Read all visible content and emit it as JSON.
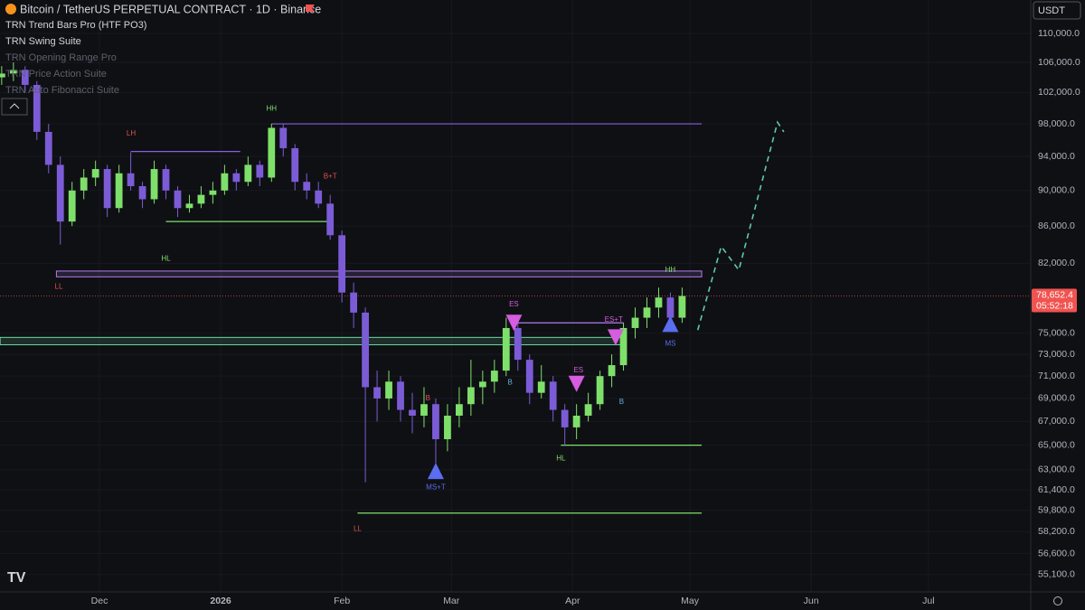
{
  "header": {
    "symbol": "Bitcoin / TetherUS PERPETUAL CONTRACT · 1D · Binance",
    "currency": "USDT"
  },
  "indicators": [
    "TRN Trend Bars Pro (HTF PO3)",
    "TRN Swing Suite",
    "TRN Opening Range Pro",
    "TRN Price Action Suite",
    "TRN Auto Fibonacci Suite"
  ],
  "chart_data": {
    "type": "candlestick",
    "x": [
      -25,
      -22,
      -19,
      -16,
      -13,
      -10,
      -7,
      -4,
      -1,
      2,
      5,
      8,
      11,
      14,
      17,
      20,
      23,
      26,
      29,
      32,
      35,
      38,
      41,
      44,
      47,
      50,
      53,
      56,
      59,
      62,
      65,
      68,
      71,
      74,
      77,
      80,
      83,
      86,
      89,
      92,
      95,
      98,
      101,
      104,
      107,
      110,
      113,
      116,
      119,
      122,
      125,
      128,
      131,
      134,
      137,
      140,
      143,
      146,
      149
    ],
    "open": [
      104000,
      104500,
      105000,
      103000,
      97000,
      93000,
      86500,
      90000,
      91500,
      92500,
      88000,
      92000,
      90500,
      89000,
      92500,
      90000,
      88000,
      88500,
      89500,
      90000,
      92000,
      91000,
      93000,
      91500,
      97500,
      95000,
      91000,
      90000,
      88500,
      85000,
      79000,
      77000,
      70000,
      69000,
      70500,
      68000,
      67500,
      68500,
      65500,
      67500,
      68500,
      70000,
      70500,
      71500,
      75500,
      72500,
      69500,
      70500,
      68000,
      66500,
      67500,
      68500,
      71000,
      72000,
      75500,
      76500,
      77500,
      78500,
      76500
    ],
    "high": [
      105500,
      106000,
      105500,
      103500,
      98000,
      94000,
      91000,
      92500,
      93500,
      93000,
      93000,
      94500,
      91000,
      93500,
      93000,
      90500,
      89500,
      90500,
      91000,
      93000,
      92500,
      94000,
      93500,
      98000,
      98000,
      95500,
      92000,
      91000,
      89500,
      85500,
      80000,
      77500,
      71500,
      71500,
      71000,
      69500,
      70000,
      69000,
      68500,
      70000,
      72500,
      71500,
      72500,
      76500,
      76000,
      73000,
      72000,
      71000,
      68500,
      68500,
      69500,
      71500,
      73000,
      76000,
      77500,
      78500,
      79500,
      79000,
      79500
    ],
    "low": [
      103000,
      103500,
      102000,
      96000,
      92000,
      84000,
      86000,
      89000,
      90500,
      87000,
      87500,
      90000,
      88000,
      88500,
      89000,
      87000,
      87500,
      88000,
      88500,
      89500,
      90000,
      90500,
      90500,
      91000,
      94000,
      90000,
      89000,
      88000,
      84500,
      78000,
      75500,
      62000,
      67000,
      68000,
      67000,
      66000,
      66500,
      63500,
      64500,
      66500,
      67500,
      68500,
      69500,
      71000,
      71500,
      68500,
      69000,
      67000,
      65000,
      65500,
      67000,
      68000,
      70000,
      71500,
      74500,
      75500,
      76500,
      75500,
      76000
    ],
    "close": [
      104500,
      105000,
      103000,
      97000,
      93000,
      86500,
      90000,
      91500,
      92500,
      88000,
      92000,
      90500,
      89000,
      92500,
      90000,
      88000,
      88500,
      89500,
      90000,
      92000,
      91000,
      93000,
      91500,
      97500,
      95000,
      91000,
      90000,
      88500,
      85000,
      79000,
      77000,
      70000,
      69000,
      70500,
      68000,
      67500,
      68500,
      65500,
      67500,
      68500,
      70000,
      70500,
      71500,
      75500,
      72500,
      69500,
      70500,
      68000,
      66500,
      67500,
      68500,
      71000,
      72000,
      75500,
      76500,
      77500,
      78500,
      76500,
      78652.4
    ],
    "up_color": "#7ee06a",
    "down_color": "#7b5cd6",
    "xlim": [
      -25.43,
      238.15
    ],
    "xticks": [
      {
        "value": 0,
        "label": "Dec"
      },
      {
        "value": 31,
        "label": "2026"
      },
      {
        "value": 62,
        "label": "Feb"
      },
      {
        "value": 90,
        "label": "Mar"
      },
      {
        "value": 121,
        "label": "Apr"
      },
      {
        "value": 151,
        "label": "May"
      },
      {
        "value": 182,
        "label": "Jun"
      },
      {
        "value": 212,
        "label": "Jul"
      }
    ],
    "ylim": [
      53890,
      114800
    ],
    "log_scale": true,
    "yticks": [
      {
        "value": 110000,
        "label": "110,000.0"
      },
      {
        "value": 106000,
        "label": "106,000.0"
      },
      {
        "value": 102000,
        "label": "102,000.0"
      },
      {
        "value": 98000,
        "label": "98,000.0"
      },
      {
        "value": 94000,
        "label": "94,000.0"
      },
      {
        "value": 90000,
        "label": "90,000.0"
      },
      {
        "value": 86000,
        "label": "86,000.0"
      },
      {
        "value": 82000,
        "label": "82,000.0"
      },
      {
        "value": 75000,
        "label": "75,000.0"
      },
      {
        "value": 73000,
        "label": "73,000.0"
      },
      {
        "value": 71000,
        "label": "71,000.0"
      },
      {
        "value": 69000,
        "label": "69,000.0"
      },
      {
        "value": 67000,
        "label": "67,000.0"
      },
      {
        "value": 65000,
        "label": "65,000.0"
      },
      {
        "value": 63000,
        "label": "63,000.0"
      },
      {
        "value": 61400,
        "label": "61,400.0"
      },
      {
        "value": 59800,
        "label": "59,800.0"
      },
      {
        "value": 58200,
        "label": "58,200.0"
      },
      {
        "value": 56600,
        "label": "56,600.0"
      },
      {
        "value": 55100,
        "label": "55,100.0"
      }
    ],
    "last_price": {
      "value": 78652.4,
      "label": "78,652.4"
    },
    "countdown": "05:52:18",
    "levels": [
      {
        "price": [
          98000
        ],
        "x": [
          44,
          154
        ],
        "color": "#8e5ee0"
      },
      {
        "price": [
          94600
        ],
        "x": [
          8,
          36
        ],
        "color": "#8e5ee0"
      },
      {
        "price": [
          86500
        ],
        "x": [
          17,
          59
        ],
        "color": "#7ee06a"
      },
      {
        "price": [
          80600,
          81200
        ],
        "x": [
          -11,
          154
        ],
        "color": "#b07de8"
      },
      {
        "price": [
          73900,
          74600
        ],
        "x": [
          -25.4,
          134
        ],
        "color": "#6fd6a0"
      },
      {
        "price": [
          76000
        ],
        "x": [
          106,
          134
        ],
        "color": "#b07de8"
      },
      {
        "price": [
          65000
        ],
        "x": [
          118,
          154
        ],
        "color": "#7ee06a"
      },
      {
        "price": [
          59600
        ],
        "x": [
          66,
          154
        ],
        "color": "#7ee06a"
      }
    ],
    "markers": [
      {
        "direction": "down",
        "x": 106,
        "price": 76000,
        "color": "#d65ce0"
      },
      {
        "direction": "down",
        "x": 122,
        "price": 70300,
        "color": "#d65ce0"
      },
      {
        "direction": "down",
        "x": 132,
        "price": 74600,
        "color": "#d65ce0"
      },
      {
        "direction": "up",
        "x": 86,
        "price": 62900,
        "color": "#5b6df0"
      },
      {
        "direction": "up",
        "x": 146,
        "price": 75900,
        "color": "#5b6df0"
      }
    ],
    "tags": [
      {
        "text": "HH",
        "x": 44,
        "price": 99900,
        "color": "#7ee06a"
      },
      {
        "text": "LH",
        "x": 8.1,
        "price": 96800,
        "color": "#e0524f"
      },
      {
        "text": "HL",
        "x": 17,
        "price": 82500,
        "color": "#7ee06a"
      },
      {
        "text": "B+T",
        "x": 59,
        "price": 91600,
        "color": "#e0524f"
      },
      {
        "text": "LL",
        "x": -10.4,
        "price": 79600,
        "color": "#e0524f"
      },
      {
        "text": "HH",
        "x": 146,
        "price": 81300,
        "color": "#7ee06a"
      },
      {
        "text": "ES",
        "x": 106,
        "price": 77800,
        "color": "#d65ce0"
      },
      {
        "text": "ES+T",
        "x": 131.5,
        "price": 76300,
        "color": "#d65ce0"
      },
      {
        "text": "ES",
        "x": 122.5,
        "price": 71500,
        "color": "#d65ce0"
      },
      {
        "text": "B",
        "x": 84,
        "price": 69000,
        "color": "#e0524f"
      },
      {
        "text": "B",
        "x": 105,
        "price": 70400,
        "color": "#5fb3d9"
      },
      {
        "text": "B",
        "x": 133.5,
        "price": 68700,
        "color": "#5fb3d9"
      },
      {
        "text": "MS+T",
        "x": 86,
        "price": 61600,
        "color": "#5b6df0"
      },
      {
        "text": "MS",
        "x": 146,
        "price": 74000,
        "color": "#5b6df0"
      },
      {
        "text": "HL",
        "x": 118,
        "price": 63900,
        "color": "#7ee06a"
      },
      {
        "text": "LL",
        "x": 66,
        "price": 58400,
        "color": "#e0524f"
      }
    ],
    "projection": {
      "x": [
        153,
        159,
        163.5,
        173.4,
        175
      ],
      "price": [
        75300,
        83800,
        81300,
        98200,
        97000
      ],
      "color": "#5fc9b0"
    }
  }
}
